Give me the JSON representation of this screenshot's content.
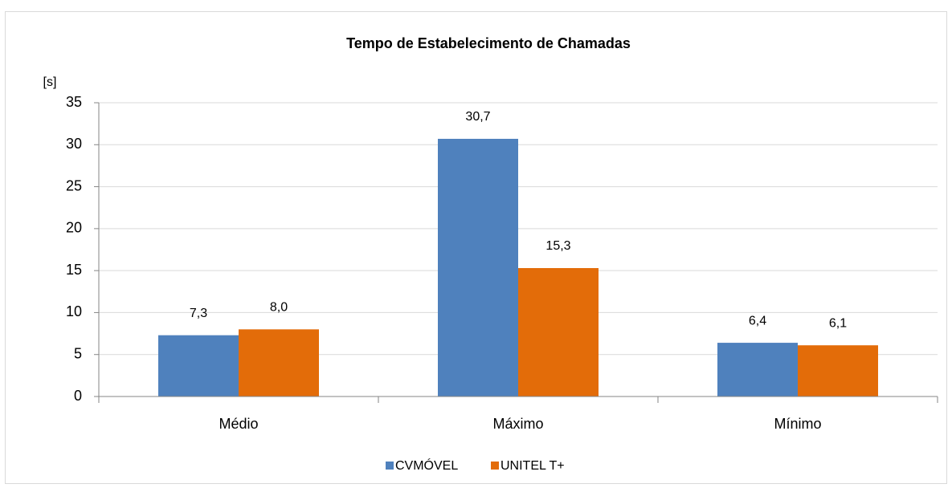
{
  "chart_data": {
    "type": "bar",
    "title": "Tempo de Estabelecimento de Chamadas",
    "y_label": "[s]",
    "categories": [
      "Médio",
      "Máximo",
      "Mínimo"
    ],
    "series": [
      {
        "name": "CVMÓVEL",
        "color": "#4f81bd",
        "values": [
          7.3,
          30.7,
          6.4
        ],
        "value_labels": [
          "7,3",
          "30,7",
          "6,4"
        ]
      },
      {
        "name": "UNITEL T+",
        "color": "#e36c09",
        "values": [
          8.0,
          15.3,
          6.1
        ],
        "value_labels": [
          "8,0",
          "15,3",
          "6,1"
        ]
      }
    ],
    "ylim": [
      0,
      35
    ],
    "yticks": [
      0,
      5,
      10,
      15,
      20,
      25,
      30,
      35
    ],
    "grid": true,
    "legend": "bottom"
  }
}
